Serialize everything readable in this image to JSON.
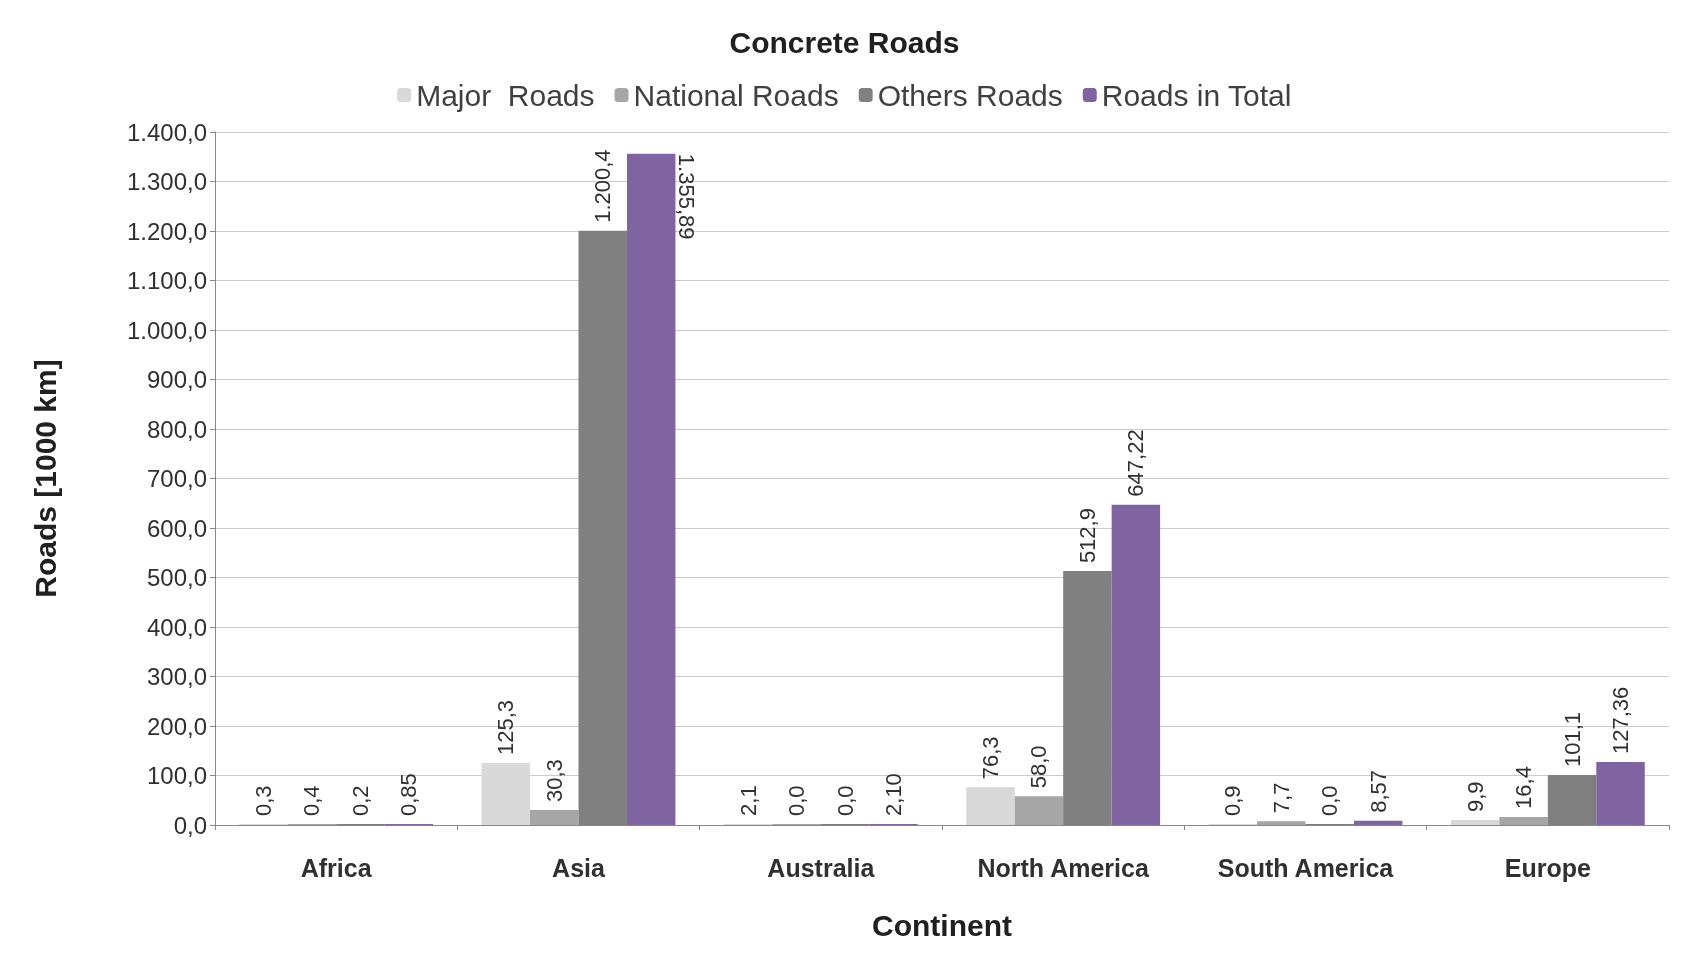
{
  "chart_data": {
    "type": "bar",
    "title": "Concrete Roads",
    "xlabel": "Continent",
    "ylabel": "Roads [1000 km]",
    "categories": [
      "Africa",
      "Asia",
      "Australia",
      "North America",
      "South America",
      "Europe"
    ],
    "series": [
      {
        "name": "Major  Roads",
        "color": "#d9d9d9",
        "values": [
          0.3,
          125.3,
          2.1,
          76.3,
          0.9,
          9.9
        ],
        "value_labels": [
          "0,3",
          "125,3",
          "2,1",
          "76,3",
          "0,9",
          "9,9"
        ]
      },
      {
        "name": "National Roads",
        "color": "#a6a6a6",
        "values": [
          0.4,
          30.3,
          0.0,
          58.0,
          7.7,
          16.4
        ],
        "value_labels": [
          "0,4",
          "30,3",
          "0,0",
          "58,0",
          "7,7",
          "16,4"
        ]
      },
      {
        "name": "Others Roads",
        "color": "#808080",
        "values": [
          0.2,
          1200.4,
          0.0,
          512.9,
          0.0,
          101.1
        ],
        "value_labels": [
          "0,2",
          "1.200,4",
          "0,0",
          "512,9",
          "0,0",
          "101,1"
        ]
      },
      {
        "name": "Roads in Total",
        "color": "#8064a2",
        "values": [
          0.85,
          1355.89,
          2.1,
          647.22,
          8.57,
          127.36
        ],
        "value_labels": [
          "0,85",
          "1.355,89",
          "2,10",
          "647,22",
          "8,57",
          "127,36"
        ]
      }
    ],
    "ylim": [
      0,
      1400
    ],
    "yticks": [
      {
        "value": 0,
        "label": "0,0"
      },
      {
        "value": 100,
        "label": "100,0"
      },
      {
        "value": 200,
        "label": "200,0"
      },
      {
        "value": 300,
        "label": "300,0"
      },
      {
        "value": 400,
        "label": "400,0"
      },
      {
        "value": 500,
        "label": "500,0"
      },
      {
        "value": 600,
        "label": "600,0"
      },
      {
        "value": 700,
        "label": "700,0"
      },
      {
        "value": 800,
        "label": "800,0"
      },
      {
        "value": 900,
        "label": "900,0"
      },
      {
        "value": 1000,
        "label": "1.000,0"
      },
      {
        "value": 1100,
        "label": "1.100,0"
      },
      {
        "value": 1200,
        "label": "1.200,0"
      },
      {
        "value": 1300,
        "label": "1.300,0"
      },
      {
        "value": 1400,
        "label": "1.400,0"
      }
    ],
    "grid": "y",
    "legend": "top"
  }
}
